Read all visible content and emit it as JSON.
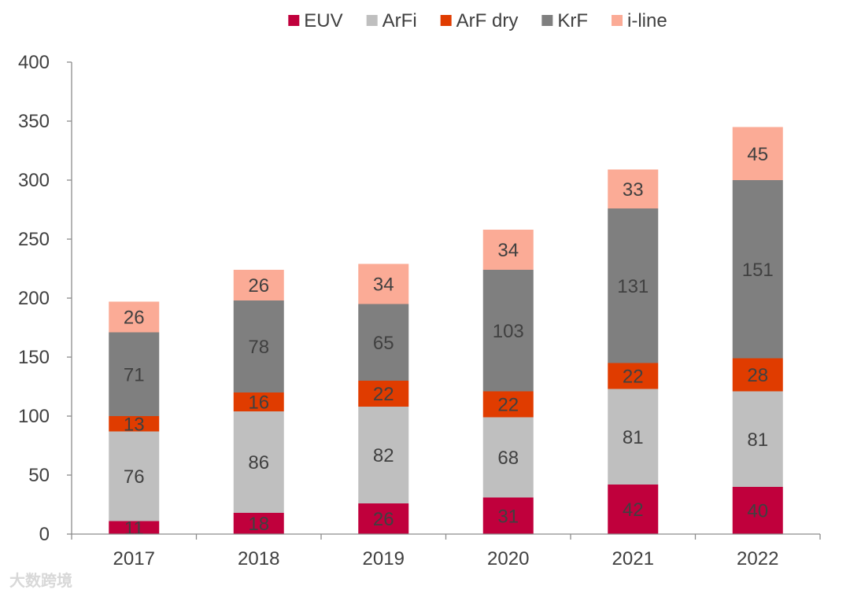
{
  "chart_data": {
    "type": "bar",
    "stacked": true,
    "categories": [
      "2017",
      "2018",
      "2019",
      "2020",
      "2021",
      "2022"
    ],
    "series": [
      {
        "name": "EUV",
        "color": "#c0003c",
        "values": [
          11,
          18,
          26,
          31,
          42,
          40
        ]
      },
      {
        "name": "ArFi",
        "color": "#bfbfbf",
        "values": [
          76,
          86,
          82,
          68,
          81,
          81
        ]
      },
      {
        "name": "ArF dry",
        "color": "#e03c00",
        "values": [
          13,
          16,
          22,
          22,
          22,
          28
        ]
      },
      {
        "name": "KrF",
        "color": "#7f7f7f",
        "values": [
          71,
          78,
          65,
          103,
          131,
          151
        ]
      },
      {
        "name": "i-line",
        "color": "#fbab96",
        "values": [
          26,
          26,
          34,
          34,
          33,
          45
        ]
      }
    ],
    "ylim": [
      0,
      400
    ],
    "yticks": [
      0,
      50,
      100,
      150,
      200,
      250,
      300,
      350,
      400
    ],
    "legend_position": "top",
    "grid": false,
    "title": "",
    "xlabel": "",
    "ylabel": ""
  },
  "watermark": "大数跨境"
}
